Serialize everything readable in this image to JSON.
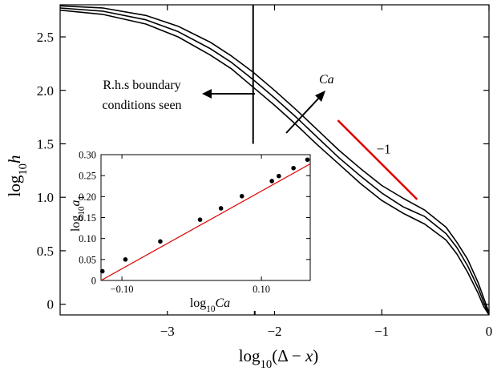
{
  "chart_data": [
    {
      "type": "line",
      "role": "main",
      "xlabel": "log10(Δ − x)",
      "ylabel": "log10h",
      "xlim": [
        -4.0,
        0.0
      ],
      "ylim": [
        -0.1,
        2.8
      ],
      "x_ticks": [
        -3,
        -2,
        -1,
        0
      ],
      "x_tick_labels": [
        "−3",
        "−2",
        "−1",
        "0"
      ],
      "y_ticks": [
        0,
        0.5,
        1.0,
        1.5,
        2.0,
        2.5
      ],
      "y_tick_labels": [
        "0",
        "0.5",
        "1.0",
        "1.5",
        "2.0",
        "2.5"
      ],
      "grid": false,
      "series": [
        {
          "color": "#000000",
          "x": [
            -4.0,
            -3.6,
            -3.2,
            -2.9,
            -2.6,
            -2.4,
            -2.2,
            -2.0,
            -1.8,
            -1.6,
            -1.4,
            -1.2,
            -1.0,
            -0.8,
            -0.6,
            -0.4,
            -0.3,
            -0.2,
            -0.1,
            -0.05,
            0.0
          ],
          "y": [
            2.79,
            2.77,
            2.7,
            2.6,
            2.45,
            2.32,
            2.17,
            2.0,
            1.82,
            1.63,
            1.44,
            1.27,
            1.11,
            0.99,
            0.88,
            0.72,
            0.58,
            0.42,
            0.2,
            0.06,
            -0.08
          ]
        },
        {
          "color": "#000000",
          "x": [
            -4.0,
            -3.6,
            -3.2,
            -2.9,
            -2.6,
            -2.4,
            -2.2,
            -2.0,
            -1.8,
            -1.6,
            -1.4,
            -1.2,
            -1.0,
            -0.8,
            -0.6,
            -0.4,
            -0.3,
            -0.2,
            -0.1,
            -0.05,
            0.0
          ],
          "y": [
            2.77,
            2.74,
            2.66,
            2.55,
            2.39,
            2.26,
            2.1,
            1.93,
            1.75,
            1.56,
            1.37,
            1.2,
            1.04,
            0.91,
            0.82,
            0.66,
            0.53,
            0.36,
            0.15,
            0.02,
            -0.1
          ]
        },
        {
          "color": "#000000",
          "x": [
            -4.0,
            -3.6,
            -3.2,
            -2.9,
            -2.6,
            -2.4,
            -2.2,
            -2.0,
            -1.8,
            -1.6,
            -1.4,
            -1.2,
            -1.0,
            -0.8,
            -0.6,
            -0.4,
            -0.3,
            -0.2,
            -0.1,
            -0.05,
            0.0
          ],
          "y": [
            2.75,
            2.71,
            2.62,
            2.5,
            2.33,
            2.2,
            2.03,
            1.86,
            1.68,
            1.49,
            1.31,
            1.13,
            0.97,
            0.85,
            0.75,
            0.6,
            0.47,
            0.3,
            0.1,
            -0.02,
            -0.1
          ]
        }
      ],
      "reference_lines": [
        {
          "color": "#e00000",
          "slope": -1,
          "label": "−1",
          "x": [
            -1.41,
            -0.67
          ],
          "y": [
            1.72,
            0.98
          ]
        }
      ],
      "vertical_marker": {
        "x": -2.2,
        "y_from": 1.5,
        "y_to": 2.8
      },
      "annotations": {
        "boundary_line1": "R.h.s boundary",
        "boundary_line2": "conditions seen",
        "arrow_label": "Ca"
      }
    },
    {
      "type": "scatter",
      "role": "inset",
      "xlabel": "log10Ca",
      "ylabel": "log10a1",
      "xlim": [
        -0.13,
        0.17
      ],
      "ylim": [
        0.0,
        0.3
      ],
      "x_ticks": [
        -0.1,
        0.1
      ],
      "x_tick_labels": [
        "−0.10",
        "0.10"
      ],
      "y_ticks": [
        0.0,
        0.05,
        0.1,
        0.15,
        0.2,
        0.25,
        0.3
      ],
      "y_tick_labels": [
        "0",
        "0.05",
        "0.10",
        "0.15",
        "0.20",
        "0.25",
        "0.30"
      ],
      "points": {
        "x": [
          -0.128,
          -0.095,
          -0.045,
          0.012,
          0.042,
          0.072,
          0.115,
          0.125,
          0.146,
          0.166
        ],
        "y": [
          0.022,
          0.05,
          0.093,
          0.145,
          0.172,
          0.201,
          0.237,
          0.249,
          0.268,
          0.288
        ]
      },
      "fit_line": {
        "color": "#e00000",
        "x": [
          -0.13,
          0.17
        ],
        "y": [
          0.0,
          0.278
        ]
      }
    }
  ]
}
